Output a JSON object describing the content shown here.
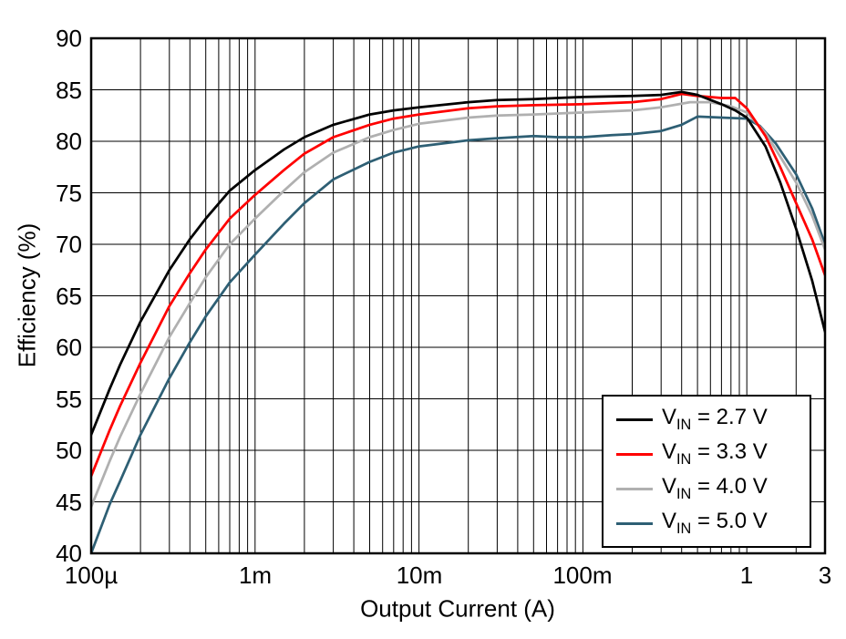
{
  "page": {
    "background": "#ffffff"
  },
  "chart_data": {
    "type": "line",
    "title": "",
    "xlabel": "Output Current (A)",
    "ylabel": "Efficiency (%)",
    "x_scale": "log",
    "xlim": [
      0.0001,
      3
    ],
    "ylim": [
      40,
      90
    ],
    "grid": "log-minor-x, major-y",
    "legend_position": "bottom-right",
    "axis_color": "#000000",
    "grid_color": "#000000",
    "y_ticks": [
      40,
      45,
      50,
      55,
      60,
      65,
      70,
      75,
      80,
      85,
      90
    ],
    "x_ticks": [
      {
        "value": 0.0001,
        "label": "100µ"
      },
      {
        "value": 0.001,
        "label": "1m"
      },
      {
        "value": 0.01,
        "label": "10m"
      },
      {
        "value": 0.1,
        "label": "100m"
      },
      {
        "value": 1,
        "label": "1"
      },
      {
        "value": 3,
        "label": "3"
      }
    ],
    "series": [
      {
        "id": "vin-2p7",
        "name": "VIN = 2.7 V",
        "label_parts": {
          "pre": "V",
          "sub": "IN",
          "post": " = 2.7 V"
        },
        "color": "#000000",
        "points": [
          [
            0.0001,
            51.5
          ],
          [
            0.00013,
            56.0
          ],
          [
            0.00015,
            58.3
          ],
          [
            0.0002,
            62.5
          ],
          [
            0.0003,
            67.5
          ],
          [
            0.0004,
            70.5
          ],
          [
            0.0005,
            72.5
          ],
          [
            0.0007,
            75.2
          ],
          [
            0.001,
            77.2
          ],
          [
            0.0015,
            79.2
          ],
          [
            0.002,
            80.4
          ],
          [
            0.003,
            81.6
          ],
          [
            0.005,
            82.6
          ],
          [
            0.007,
            83.0
          ],
          [
            0.01,
            83.3
          ],
          [
            0.02,
            83.8
          ],
          [
            0.03,
            84.0
          ],
          [
            0.05,
            84.1
          ],
          [
            0.07,
            84.2
          ],
          [
            0.1,
            84.3
          ],
          [
            0.2,
            84.4
          ],
          [
            0.3,
            84.5
          ],
          [
            0.4,
            84.8
          ],
          [
            0.5,
            84.5
          ],
          [
            0.7,
            83.6
          ],
          [
            0.85,
            83.0
          ],
          [
            1,
            82.3
          ],
          [
            1.3,
            79.5
          ],
          [
            1.6,
            76.0
          ],
          [
            2,
            71.5
          ],
          [
            2.5,
            66.5
          ],
          [
            3,
            61.5
          ]
        ]
      },
      {
        "id": "vin-3p3",
        "name": "VIN = 3.3 V",
        "label_parts": {
          "pre": "V",
          "sub": "IN",
          "post": " = 3.3 V"
        },
        "color": "#ff0000",
        "points": [
          [
            0.0001,
            47.5
          ],
          [
            0.00013,
            52.0
          ],
          [
            0.00015,
            54.3
          ],
          [
            0.0002,
            58.5
          ],
          [
            0.0003,
            64.0
          ],
          [
            0.0004,
            67.2
          ],
          [
            0.0005,
            69.5
          ],
          [
            0.0007,
            72.5
          ],
          [
            0.001,
            74.8
          ],
          [
            0.0015,
            77.2
          ],
          [
            0.002,
            78.8
          ],
          [
            0.003,
            80.4
          ],
          [
            0.005,
            81.6
          ],
          [
            0.007,
            82.2
          ],
          [
            0.01,
            82.6
          ],
          [
            0.02,
            83.2
          ],
          [
            0.03,
            83.4
          ],
          [
            0.05,
            83.5
          ],
          [
            0.1,
            83.6
          ],
          [
            0.2,
            83.8
          ],
          [
            0.3,
            84.1
          ],
          [
            0.4,
            84.6
          ],
          [
            0.5,
            84.4
          ],
          [
            0.7,
            84.2
          ],
          [
            0.85,
            84.2
          ],
          [
            1,
            83.2
          ],
          [
            1.3,
            80.5
          ],
          [
            1.6,
            77.5
          ],
          [
            2,
            74.0
          ],
          [
            2.5,
            70.5
          ],
          [
            3,
            67.0
          ]
        ]
      },
      {
        "id": "vin-4p0",
        "name": "VIN = 4.0 V",
        "label_parts": {
          "pre": "V",
          "sub": "IN",
          "post": " = 4.0 V"
        },
        "color": "#b0b0b0",
        "points": [
          [
            0.0001,
            44.5
          ],
          [
            0.00013,
            49.0
          ],
          [
            0.00015,
            51.3
          ],
          [
            0.0002,
            55.5
          ],
          [
            0.0003,
            61.0
          ],
          [
            0.0004,
            64.3
          ],
          [
            0.0005,
            66.8
          ],
          [
            0.0007,
            70.0
          ],
          [
            0.001,
            72.5
          ],
          [
            0.0015,
            75.2
          ],
          [
            0.002,
            77.0
          ],
          [
            0.003,
            78.9
          ],
          [
            0.005,
            80.4
          ],
          [
            0.007,
            81.1
          ],
          [
            0.01,
            81.7
          ],
          [
            0.02,
            82.3
          ],
          [
            0.03,
            82.5
          ],
          [
            0.05,
            82.6
          ],
          [
            0.1,
            82.8
          ],
          [
            0.2,
            83.0
          ],
          [
            0.3,
            83.3
          ],
          [
            0.45,
            83.8
          ],
          [
            0.6,
            83.8
          ],
          [
            0.8,
            83.4
          ],
          [
            1,
            82.8
          ],
          [
            1.3,
            80.8
          ],
          [
            1.6,
            78.5
          ],
          [
            2,
            76.0
          ],
          [
            2.5,
            72.8
          ],
          [
            3,
            69.5
          ]
        ]
      },
      {
        "id": "vin-5p0",
        "name": "VIN = 5.0 V",
        "label_parts": {
          "pre": "V",
          "sub": "IN",
          "post": " = 5.0 V"
        },
        "color": "#2e5f74",
        "points": [
          [
            0.0001,
            40.0
          ],
          [
            0.00013,
            44.8
          ],
          [
            0.00015,
            47.0
          ],
          [
            0.0002,
            51.5
          ],
          [
            0.0003,
            57.0
          ],
          [
            0.0004,
            60.5
          ],
          [
            0.0005,
            63.0
          ],
          [
            0.0007,
            66.3
          ],
          [
            0.001,
            69.0
          ],
          [
            0.0015,
            72.0
          ],
          [
            0.002,
            74.0
          ],
          [
            0.003,
            76.3
          ],
          [
            0.005,
            78.0
          ],
          [
            0.007,
            78.9
          ],
          [
            0.01,
            79.5
          ],
          [
            0.02,
            80.1
          ],
          [
            0.03,
            80.3
          ],
          [
            0.05,
            80.5
          ],
          [
            0.07,
            80.4
          ],
          [
            0.1,
            80.4
          ],
          [
            0.15,
            80.6
          ],
          [
            0.2,
            80.7
          ],
          [
            0.3,
            81.0
          ],
          [
            0.4,
            81.6
          ],
          [
            0.5,
            82.4
          ],
          [
            0.7,
            82.3
          ],
          [
            1,
            82.2
          ],
          [
            1.2,
            81.5
          ],
          [
            1.5,
            79.8
          ],
          [
            2,
            76.8
          ],
          [
            2.5,
            73.5
          ],
          [
            3,
            70.0
          ]
        ]
      }
    ]
  }
}
